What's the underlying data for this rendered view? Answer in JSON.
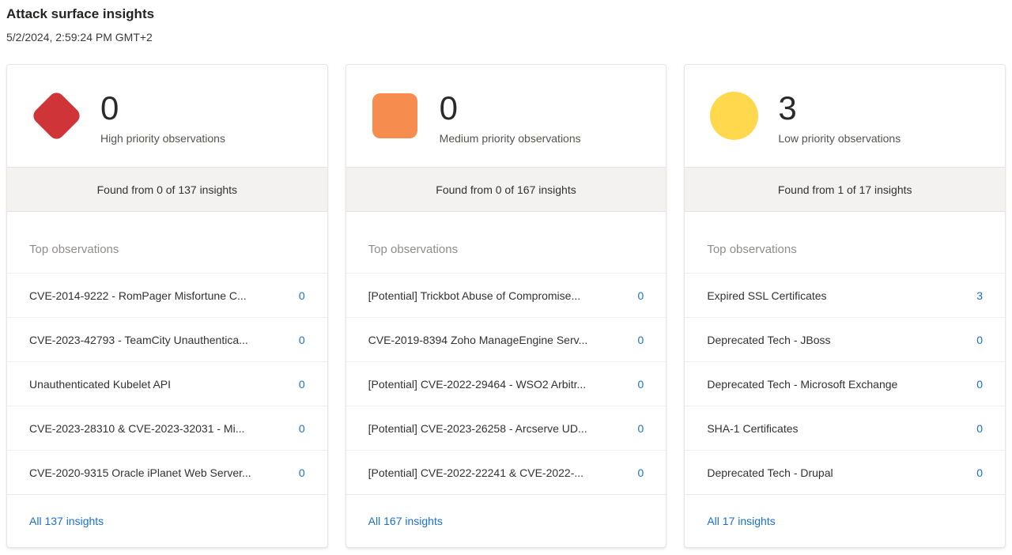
{
  "page": {
    "title": "Attack surface insights",
    "timestamp": "5/2/2024, 2:59:24 PM GMT+2"
  },
  "colors": {
    "high": "#cf3438",
    "medium": "#f68c4e",
    "low": "#ffd84d",
    "link": "#1a6fce"
  },
  "cards": [
    {
      "severity": "high",
      "icon": "diamond",
      "count": "0",
      "label": "High priority observations",
      "found_text": "Found from 0 of 137 insights",
      "list_title": "Top observations",
      "rows": [
        {
          "label": "CVE-2014-9222 - RomPager Misfortune C...",
          "value": "0"
        },
        {
          "label": "CVE-2023-42793 - TeamCity Unauthentica...",
          "value": "0"
        },
        {
          "label": "Unauthenticated Kubelet API",
          "value": "0"
        },
        {
          "label": "CVE-2023-28310 & CVE-2023-32031 - Mi...",
          "value": "0"
        },
        {
          "label": "CVE-2020-9315 Oracle iPlanet Web Server...",
          "value": "0"
        }
      ],
      "footer_link": "All 137 insights"
    },
    {
      "severity": "medium",
      "icon": "square",
      "count": "0",
      "label": "Medium priority observations",
      "found_text": "Found from 0 of 167 insights",
      "list_title": "Top observations",
      "rows": [
        {
          "label": "[Potential] Trickbot Abuse of Compromise...",
          "value": "0"
        },
        {
          "label": "CVE-2019-8394 Zoho ManageEngine Serv...",
          "value": "0"
        },
        {
          "label": "[Potential] CVE-2022-29464 - WSO2 Arbitr...",
          "value": "0"
        },
        {
          "label": "[Potential] CVE-2023-26258 - Arcserve UD...",
          "value": "0"
        },
        {
          "label": "[Potential] CVE-2022-22241 & CVE-2022-...",
          "value": "0"
        }
      ],
      "footer_link": "All 167 insights"
    },
    {
      "severity": "low",
      "icon": "circle",
      "count": "3",
      "label": "Low priority observations",
      "found_text": "Found from 1 of 17 insights",
      "list_title": "Top observations",
      "rows": [
        {
          "label": "Expired SSL Certificates",
          "value": "3"
        },
        {
          "label": "Deprecated Tech - JBoss",
          "value": "0"
        },
        {
          "label": "Deprecated Tech - Microsoft Exchange",
          "value": "0"
        },
        {
          "label": "SHA-1 Certificates",
          "value": "0"
        },
        {
          "label": "Deprecated Tech - Drupal",
          "value": "0"
        }
      ],
      "footer_link": "All 17 insights"
    }
  ]
}
